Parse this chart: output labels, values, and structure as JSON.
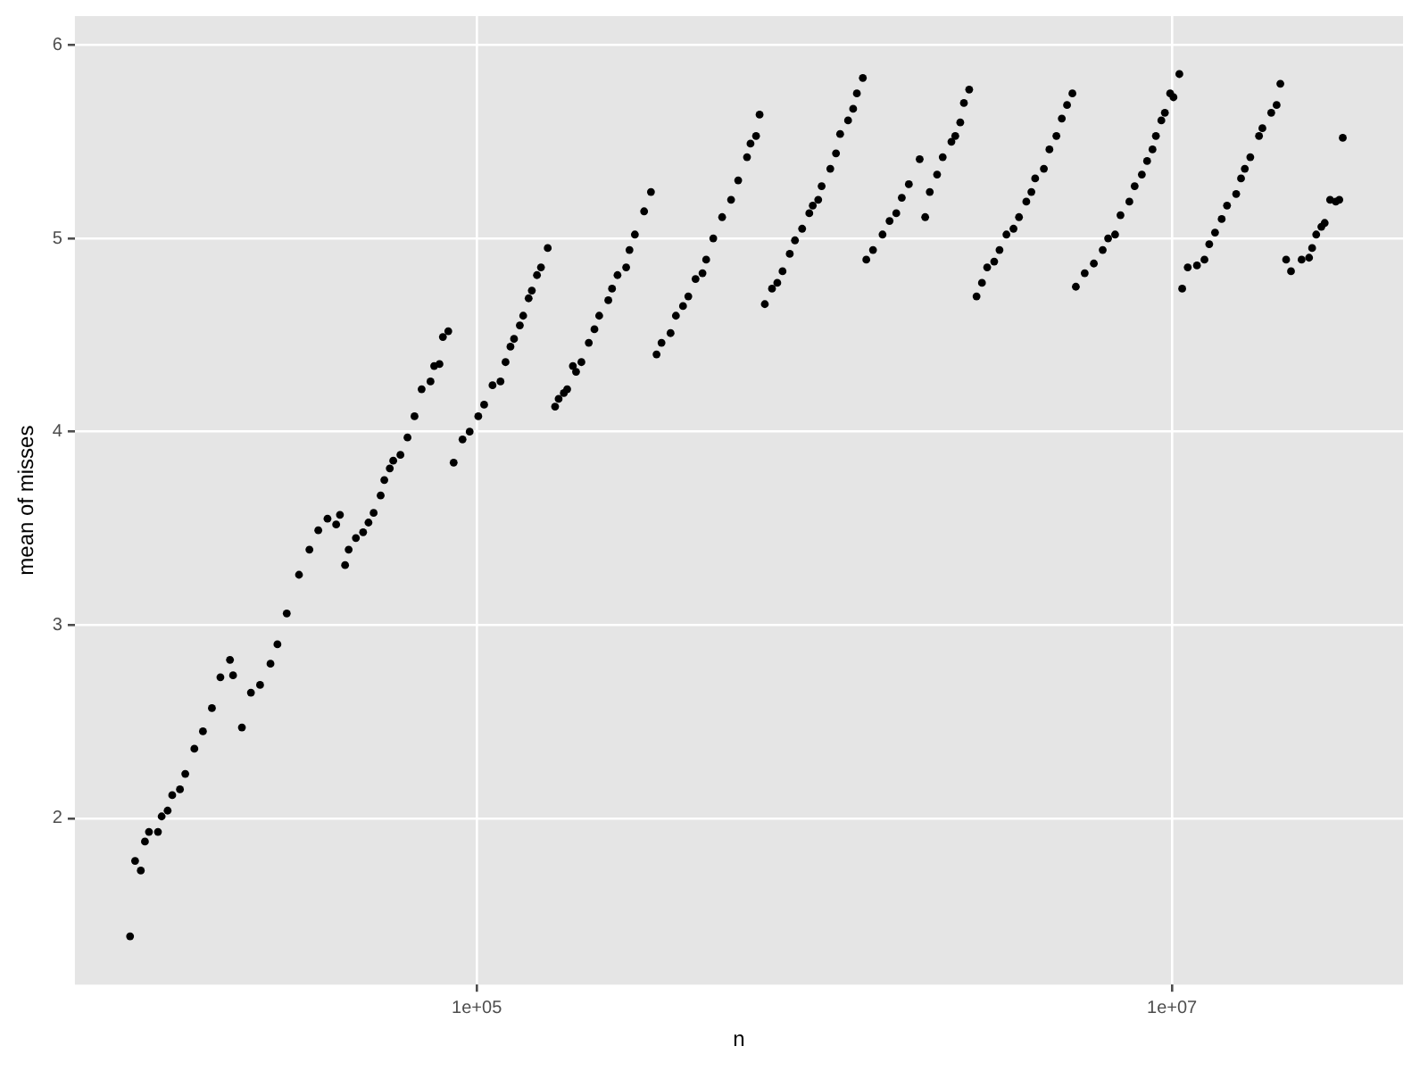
{
  "chart_data": {
    "type": "scatter",
    "xlabel": "n",
    "ylabel": "mean of misses",
    "log": "x",
    "grid": true,
    "legend": false,
    "marker": "circle",
    "color": "#000000",
    "xlim": [
      6980,
      46200000
    ],
    "ylim": [
      1.14,
      6.15
    ],
    "xticks": [
      {
        "value": 100000,
        "label": "1e+05"
      },
      {
        "value": 10000000,
        "label": "1e+07"
      }
    ],
    "yticks": [
      2,
      3,
      4,
      5,
      6
    ],
    "x": [
      10060,
      10400,
      10800,
      11100,
      11400,
      12100,
      12400,
      12900,
      13300,
      14000,
      14500,
      15400,
      16300,
      17300,
      18300,
      19500,
      19900,
      21100,
      22400,
      23800,
      25500,
      26700,
      28400,
      30800,
      33000,
      35000,
      37200,
      39400,
      40400,
      41800,
      42800,
      44900,
      47100,
      48800,
      50500,
      52900,
      54200,
      56200,
      57500,
      60300,
      63200,
      66200,
      69400,
      73600,
      75400,
      78100,
      79900,
      82800,
      85800,
      91000,
      95400,
      101000,
      105000,
      111000,
      117000,
      121000,
      125000,
      128000,
      133000,
      136000,
      141000,
      144000,
      149000,
      153000,
      160000,
      168000,
      172000,
      178000,
      182000,
      189000,
      193000,
      200000,
      210000,
      218000,
      225000,
      239000,
      245000,
      254000,
      269000,
      275000,
      285000,
      303000,
      317000,
      329000,
      340000,
      361000,
      374000,
      392000,
      406000,
      426000,
      446000,
      457000,
      479000,
      508000,
      539000,
      565000,
      599000,
      613000,
      636000,
      651000,
      674000,
      707000,
      732000,
      758000,
      795000,
      823000,
      863000,
      905000,
      926000,
      960000,
      982000,
      1040000,
      1080000,
      1110000,
      1170000,
      1210000,
      1240000,
      1290000,
      1320000,
      1380000,
      1470000,
      1540000,
      1610000,
      1670000,
      1750000,
      1880000,
      1950000,
      2010000,
      2110000,
      2190000,
      2320000,
      2380000,
      2460000,
      2520000,
      2610000,
      2740000,
      2840000,
      2940000,
      3080000,
      3190000,
      3340000,
      3500000,
      3630000,
      3810000,
      3940000,
      4040000,
      4280000,
      4440000,
      4650000,
      4820000,
      4990000,
      5170000,
      5290000,
      5610000,
      5960000,
      6320000,
      6550000,
      6860000,
      7110000,
      7540000,
      7810000,
      8190000,
      8480000,
      8790000,
      8990000,
      9320000,
      9540000,
      9880000,
      10100000,
      10500000,
      10700000,
      11100000,
      11800000,
      12400000,
      12800000,
      13300000,
      13900000,
      14400000,
      15300000,
      15800000,
      16200000,
      16800000,
      17800000,
      18200000,
      19300000,
      20000000,
      20500000,
      21300000,
      22000000,
      23600000,
      24800000,
      25300000,
      26000000,
      26900000,
      27500000,
      28500000,
      29600000,
      30300000,
      31000000
    ],
    "values": [
      1.39,
      1.78,
      1.73,
      1.88,
      1.93,
      1.93,
      2.01,
      2.04,
      2.12,
      2.15,
      2.23,
      2.36,
      2.45,
      2.57,
      2.73,
      2.82,
      2.74,
      2.47,
      2.65,
      2.69,
      2.8,
      2.9,
      3.06,
      3.26,
      3.39,
      3.49,
      3.55,
      3.52,
      3.57,
      3.31,
      3.39,
      3.45,
      3.48,
      3.53,
      3.58,
      3.67,
      3.75,
      3.81,
      3.85,
      3.88,
      3.97,
      4.08,
      4.22,
      4.26,
      4.34,
      4.35,
      4.49,
      4.52,
      3.84,
      3.96,
      4.0,
      4.08,
      4.14,
      4.24,
      4.26,
      4.36,
      4.44,
      4.48,
      4.55,
      4.6,
      4.69,
      4.73,
      4.81,
      4.85,
      4.95,
      4.13,
      4.17,
      4.2,
      4.22,
      4.34,
      4.31,
      4.36,
      4.46,
      4.53,
      4.6,
      4.68,
      4.74,
      4.81,
      4.85,
      4.94,
      5.02,
      5.14,
      5.24,
      4.4,
      4.46,
      4.51,
      4.6,
      4.65,
      4.7,
      4.79,
      4.82,
      4.89,
      5.0,
      5.11,
      5.2,
      5.3,
      5.42,
      5.49,
      5.53,
      5.64,
      4.66,
      4.74,
      4.77,
      4.83,
      4.92,
      4.99,
      5.05,
      5.13,
      5.17,
      5.2,
      5.27,
      5.36,
      5.44,
      5.54,
      5.61,
      5.67,
      5.75,
      5.83,
      4.89,
      4.94,
      5.02,
      5.09,
      5.13,
      5.21,
      5.28,
      5.41,
      5.11,
      5.24,
      5.33,
      5.42,
      5.5,
      5.53,
      5.6,
      5.7,
      5.77,
      4.7,
      4.77,
      4.85,
      4.88,
      4.94,
      5.02,
      5.05,
      5.11,
      5.19,
      5.24,
      5.31,
      5.36,
      5.46,
      5.53,
      5.62,
      5.69,
      5.75,
      4.75,
      4.82,
      4.87,
      4.94,
      5.0,
      5.02,
      5.12,
      5.19,
      5.27,
      5.33,
      5.4,
      5.46,
      5.53,
      5.61,
      5.65,
      5.75,
      5.73,
      5.85,
      4.74,
      4.85,
      4.86,
      4.89,
      4.97,
      5.03,
      5.1,
      5.17,
      5.23,
      5.31,
      5.36,
      5.42,
      5.53,
      5.57,
      5.65,
      5.69,
      5.8,
      4.89,
      4.83,
      4.89,
      4.9,
      4.95,
      5.02,
      5.06,
      5.08,
      5.2,
      5.19,
      5.2,
      5.52
    ]
  }
}
